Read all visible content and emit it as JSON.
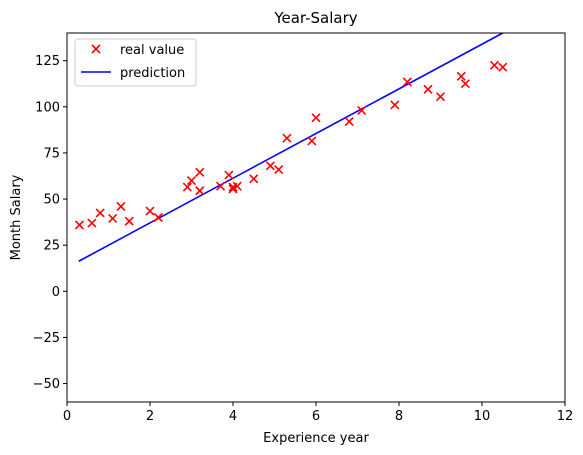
{
  "chart_data": {
    "type": "scatter",
    "title": "Year-Salary",
    "xlabel": "Experience year",
    "ylabel": "Month Salary",
    "xlim": [
      0,
      12
    ],
    "ylim": [
      -60,
      140
    ],
    "x_ticks": [
      0,
      2,
      4,
      6,
      8,
      10,
      12
    ],
    "y_ticks": [
      -50,
      -25,
      0,
      25,
      50,
      75,
      100,
      125
    ],
    "x_tick_labels": [
      "0",
      "2",
      "4",
      "6",
      "8",
      "10",
      "12"
    ],
    "y_tick_labels": [
      "−50",
      "−25",
      "0",
      "25",
      "50",
      "75",
      "100",
      "125"
    ],
    "grid": false,
    "legend_position": "top-left",
    "series": [
      {
        "name": "real value",
        "kind": "scatter",
        "marker": "x",
        "color": "#ff0000",
        "points": [
          [
            0.3,
            36.0
          ],
          [
            0.6,
            37.0
          ],
          [
            0.8,
            42.5
          ],
          [
            1.1,
            39.5
          ],
          [
            1.3,
            46.0
          ],
          [
            1.5,
            38.0
          ],
          [
            2.0,
            43.5
          ],
          [
            2.2,
            40.0
          ],
          [
            2.9,
            56.5
          ],
          [
            3.0,
            60.0
          ],
          [
            3.2,
            54.5
          ],
          [
            3.2,
            64.5
          ],
          [
            3.7,
            57.0
          ],
          [
            3.9,
            63.0
          ],
          [
            4.0,
            55.5
          ],
          [
            4.0,
            56.5
          ],
          [
            4.1,
            57.0
          ],
          [
            4.5,
            61.0
          ],
          [
            4.9,
            68.0
          ],
          [
            5.1,
            66.0
          ],
          [
            5.3,
            83.0
          ],
          [
            5.9,
            81.5
          ],
          [
            6.0,
            94.0
          ],
          [
            6.8,
            92.0
          ],
          [
            7.1,
            98.0
          ],
          [
            7.9,
            101.0
          ],
          [
            8.2,
            113.5
          ],
          [
            8.7,
            109.5
          ],
          [
            9.0,
            105.5
          ],
          [
            9.5,
            116.5
          ],
          [
            9.6,
            112.5
          ],
          [
            10.3,
            122.5
          ],
          [
            10.5,
            121.5
          ]
        ]
      },
      {
        "name": "prediction",
        "kind": "line",
        "color": "#0000ff",
        "points": [
          [
            0.3,
            16.5
          ],
          [
            10.5,
            140.0
          ]
        ]
      }
    ]
  }
}
